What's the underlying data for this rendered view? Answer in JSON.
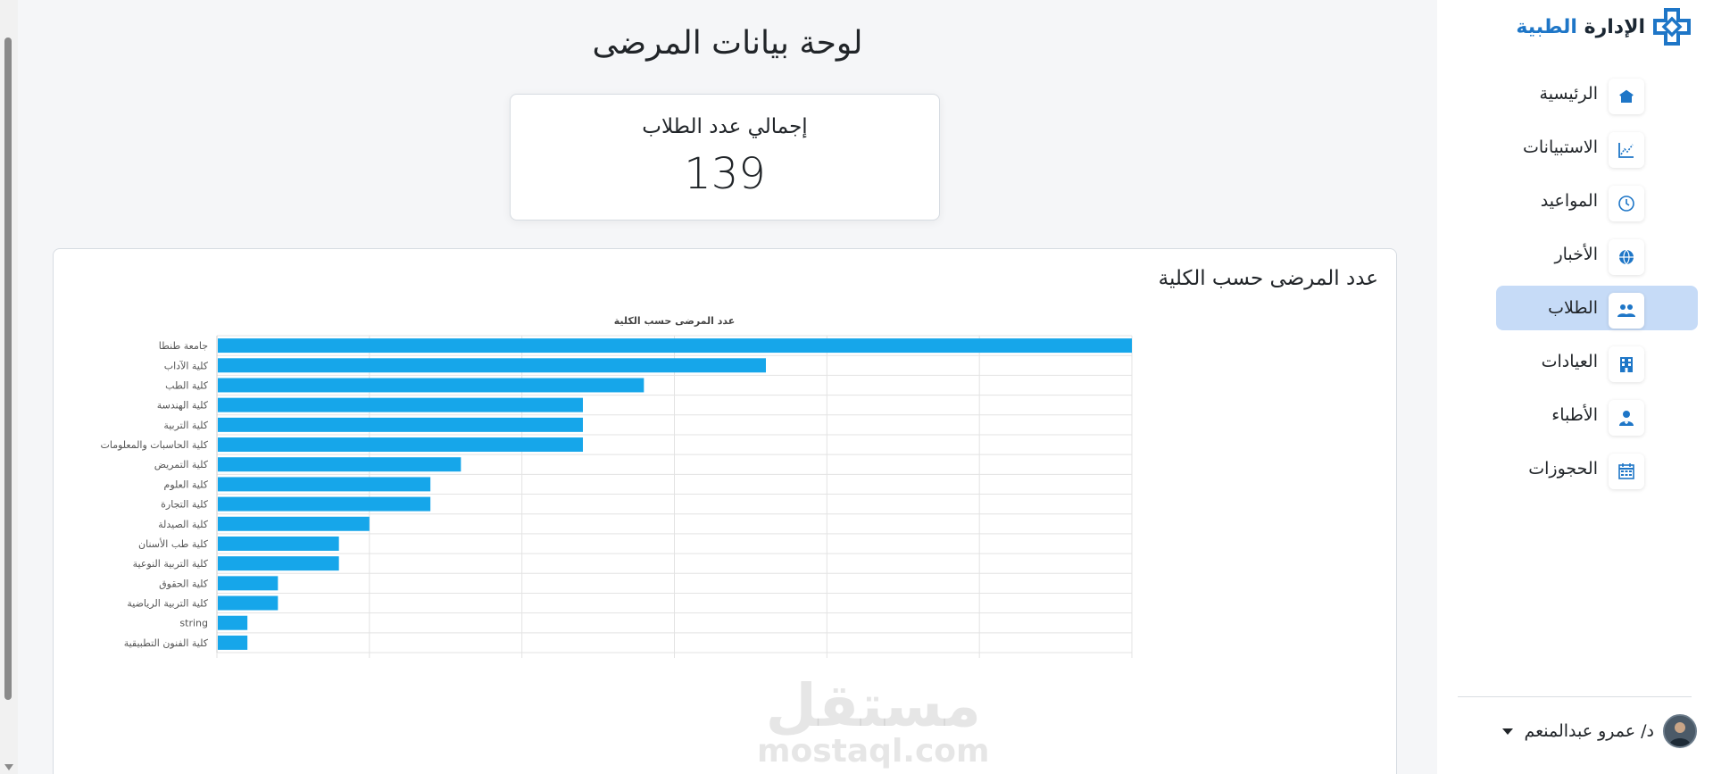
{
  "page_title": "لوحة بيانات المرضى",
  "total_card": {
    "label": "إجمالي عدد الطلاب",
    "value": "139"
  },
  "chart_card": {
    "title": "عدد المرضى حسب الكلية"
  },
  "chart_data": {
    "type": "bar",
    "orientation": "horizontal",
    "title": "عدد المرضى حسب الكلية",
    "categories": [
      "جامعة طنطا",
      "كلية الآداب",
      "كلية الطب",
      "كلية الهندسة",
      "كلية التربية",
      "كلية الحاسبات والمعلومات",
      "كلية التمريض",
      "كلية العلوم",
      "كلية التجارة",
      "كلية الصيدلة",
      "كلية طب الأسنان",
      "كلية التربية النوعية",
      "كلية الحقوق",
      "كلية التربية الرياضية",
      "string",
      "كلية الفنون التطبيقية"
    ],
    "values": [
      30,
      18,
      14,
      12,
      12,
      12,
      8,
      7,
      7,
      5,
      4,
      4,
      2,
      2,
      1,
      1
    ],
    "xlim": [
      0,
      30
    ],
    "xticks": [
      0,
      5,
      10,
      15,
      20,
      25,
      30
    ],
    "grid": true,
    "bar_color": "#16a6ea"
  },
  "sidebar": {
    "brand": {
      "main": "الإدارة",
      "accent": "الطبية"
    },
    "items": [
      {
        "label": "الرئيسية",
        "icon": "home-icon",
        "active": false
      },
      {
        "label": "الاستبيانات",
        "icon": "chart-line-icon",
        "active": false
      },
      {
        "label": "المواعيد",
        "icon": "clock-icon",
        "active": false
      },
      {
        "label": "الأخبار",
        "icon": "globe-icon",
        "active": false
      },
      {
        "label": "الطلاب",
        "icon": "students-icon",
        "active": true
      },
      {
        "label": "العيادات",
        "icon": "building-icon",
        "active": false
      },
      {
        "label": "الأطباء",
        "icon": "doctor-icon",
        "active": false
      },
      {
        "label": "الحجوزات",
        "icon": "calendar-icon",
        "active": false
      }
    ],
    "user": {
      "name": "د/ عمرو عبدالمنعم"
    }
  },
  "watermark": {
    "ar": "مستقل",
    "en": "mostaql.com"
  },
  "colors": {
    "accent": "#1e76c7",
    "active_bg": "#c6dbf7",
    "bar": "#16a6ea"
  }
}
